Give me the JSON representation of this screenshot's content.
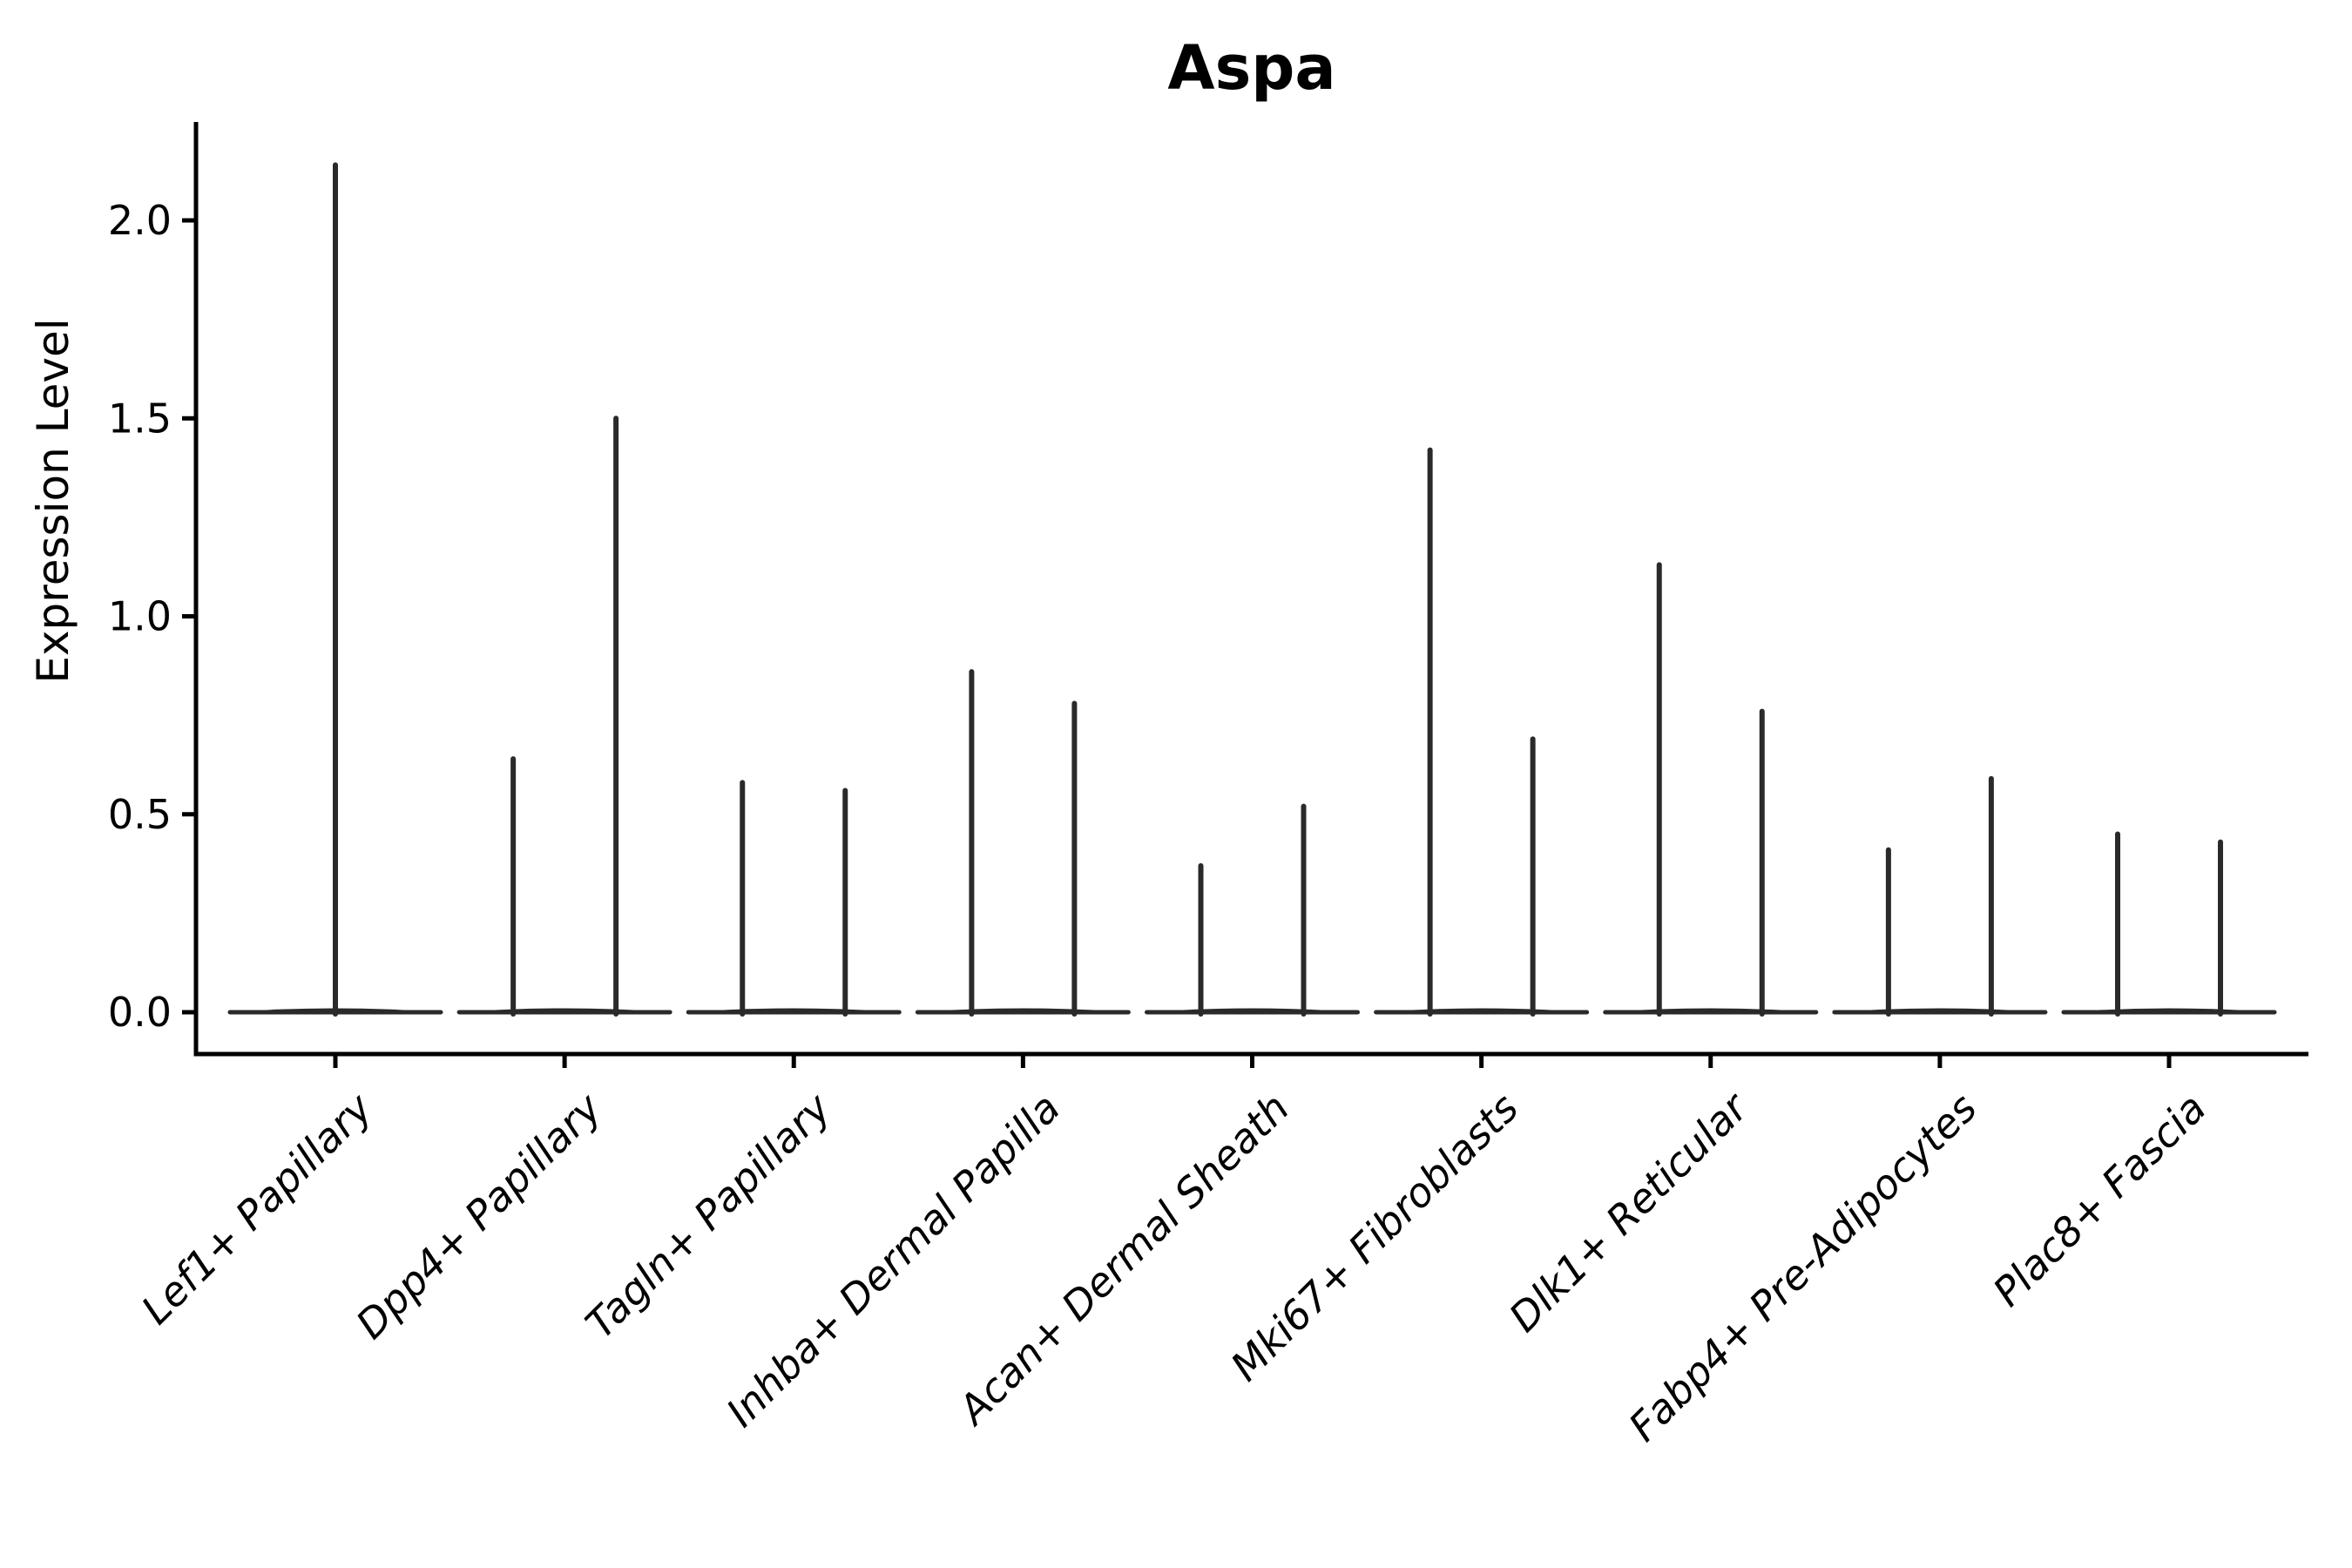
{
  "page": {
    "background": "#ffffff"
  },
  "chart_data": {
    "type": "violin",
    "title": "Aspa",
    "ylabel": "Expression Level",
    "xlabel": "",
    "grid": false,
    "legend": "none",
    "ylim": [
      -0.11,
      2.25
    ],
    "yticks": [
      0.0,
      0.5,
      1.0,
      1.5,
      2.0
    ],
    "ytick_labels": [
      "0.0",
      "0.5",
      "1.0",
      "1.5",
      "2.0"
    ],
    "categories": [
      "Lef1+ Papillary",
      "Dpp4+ Papillary",
      "Tagln+ Papillary",
      "Inhba+ Dermal Papilla",
      "Acan+ Dermal Sheath",
      "Mki67+ Fibroblasts",
      "Dlk1+ Reticular",
      "Fabp4+ Pre-Adipocytes",
      "Plac8+ Fascia"
    ],
    "violins": [
      {
        "category": "Lef1+ Papillary",
        "spike_maxima": [
          2.14
        ]
      },
      {
        "category": "Dpp4+ Papillary",
        "spike_maxima": [
          0.64,
          1.5
        ]
      },
      {
        "category": "Tagln+ Papillary",
        "spike_maxima": [
          0.58,
          0.56
        ]
      },
      {
        "category": "Inhba+ Dermal Papilla",
        "spike_maxima": [
          0.86,
          0.78
        ]
      },
      {
        "category": "Acan+ Dermal Sheath",
        "spike_maxima": [
          0.37,
          0.52
        ]
      },
      {
        "category": "Mki67+ Fibroblasts",
        "spike_maxima": [
          1.42,
          0.69
        ]
      },
      {
        "category": "Dlk1+ Reticular",
        "spike_maxima": [
          1.13,
          0.76
        ]
      },
      {
        "category": "Fabp4+ Pre-Adipocytes",
        "spike_maxima": [
          0.41,
          0.59
        ]
      },
      {
        "category": "Plac8+ Fascia",
        "spike_maxima": [
          0.45,
          0.43
        ]
      }
    ],
    "body_at_zero": true,
    "colors": {
      "violin_stroke": "#2a2a2a",
      "spine": "#000000",
      "text": "#000000"
    }
  }
}
